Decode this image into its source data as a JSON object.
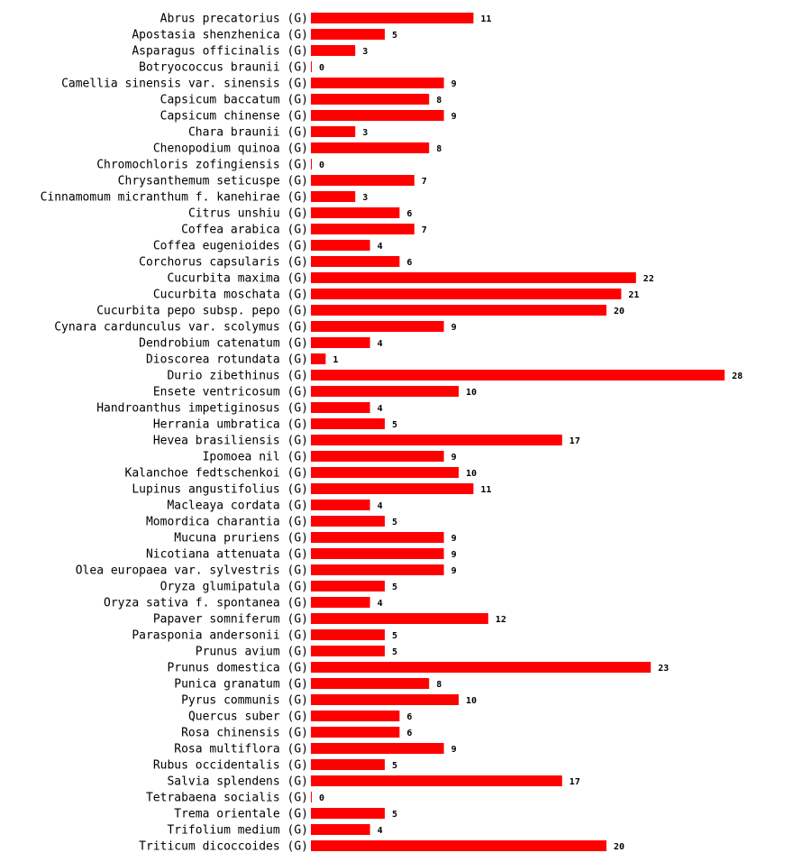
{
  "chart_data": {
    "type": "bar",
    "orientation": "horizontal",
    "bar_color": "#ff0000",
    "label_suffix": " (G)",
    "xlim": [
      0,
      28
    ],
    "categories": [
      "Abrus precatorius",
      "Apostasia shenzhenica",
      "Asparagus officinalis",
      "Botryococcus braunii",
      "Camellia sinensis var. sinensis",
      "Capsicum baccatum",
      "Capsicum chinense",
      "Chara braunii",
      "Chenopodium quinoa",
      "Chromochloris zofingiensis",
      "Chrysanthemum seticuspe",
      "Cinnamomum micranthum f. kanehirae",
      "Citrus unshiu",
      "Coffea arabica",
      "Coffea eugenioides",
      "Corchorus capsularis",
      "Cucurbita maxima",
      "Cucurbita moschata",
      "Cucurbita pepo subsp. pepo",
      "Cynara cardunculus var. scolymus",
      "Dendrobium catenatum",
      "Dioscorea rotundata",
      "Durio zibethinus",
      "Ensete ventricosum",
      "Handroanthus impetiginosus",
      "Herrania umbratica",
      "Hevea brasiliensis",
      "Ipomoea nil",
      "Kalanchoe fedtschenkoi",
      "Lupinus angustifolius",
      "Macleaya cordata",
      "Momordica charantia",
      "Mucuna pruriens",
      "Nicotiana attenuata",
      "Olea europaea var. sylvestris",
      "Oryza glumipatula",
      "Oryza sativa f. spontanea",
      "Papaver somniferum",
      "Parasponia andersonii",
      "Prunus avium",
      "Prunus domestica",
      "Punica granatum",
      "Pyrus communis",
      "Quercus suber",
      "Rosa chinensis",
      "Rosa multiflora",
      "Rubus occidentalis",
      "Salvia splendens",
      "Tetrabaena socialis",
      "Trema orientale",
      "Trifolium medium",
      "Triticum dicoccoides"
    ],
    "values": [
      11,
      5,
      3,
      0,
      9,
      8,
      9,
      3,
      8,
      0,
      7,
      3,
      6,
      7,
      4,
      6,
      22,
      21,
      20,
      9,
      4,
      1,
      28,
      10,
      4,
      5,
      17,
      9,
      10,
      11,
      4,
      5,
      9,
      9,
      9,
      5,
      4,
      12,
      5,
      5,
      23,
      8,
      10,
      6,
      6,
      9,
      5,
      17,
      0,
      5,
      4,
      20
    ]
  }
}
